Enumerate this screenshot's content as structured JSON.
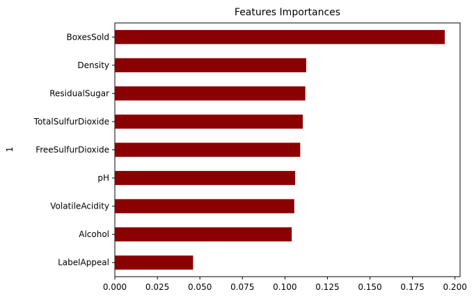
{
  "chart_data": {
    "type": "bar",
    "orientation": "horizontal",
    "title": "Features Importances",
    "xlabel": "",
    "ylabel": "1",
    "categories": [
      "BoxesSold",
      "Density",
      "ResidualSugar",
      "TotalSulfurDioxide",
      "FreeSulfurDioxide",
      "pH",
      "VolatileAcidity",
      "Alcohol",
      "LabelAppeal"
    ],
    "values": [
      0.194,
      0.1125,
      0.112,
      0.1105,
      0.109,
      0.106,
      0.1055,
      0.104,
      0.046
    ],
    "xlim": [
      0.0,
      0.203
    ],
    "xticks": [
      0.0,
      0.025,
      0.05,
      0.075,
      0.1,
      0.125,
      0.15,
      0.175,
      0.2
    ],
    "xtick_labels": [
      "0.000",
      "0.025",
      "0.050",
      "0.075",
      "0.100",
      "0.125",
      "0.150",
      "0.175",
      "0.200"
    ],
    "grid": false,
    "bar_color": "#8b0000"
  }
}
